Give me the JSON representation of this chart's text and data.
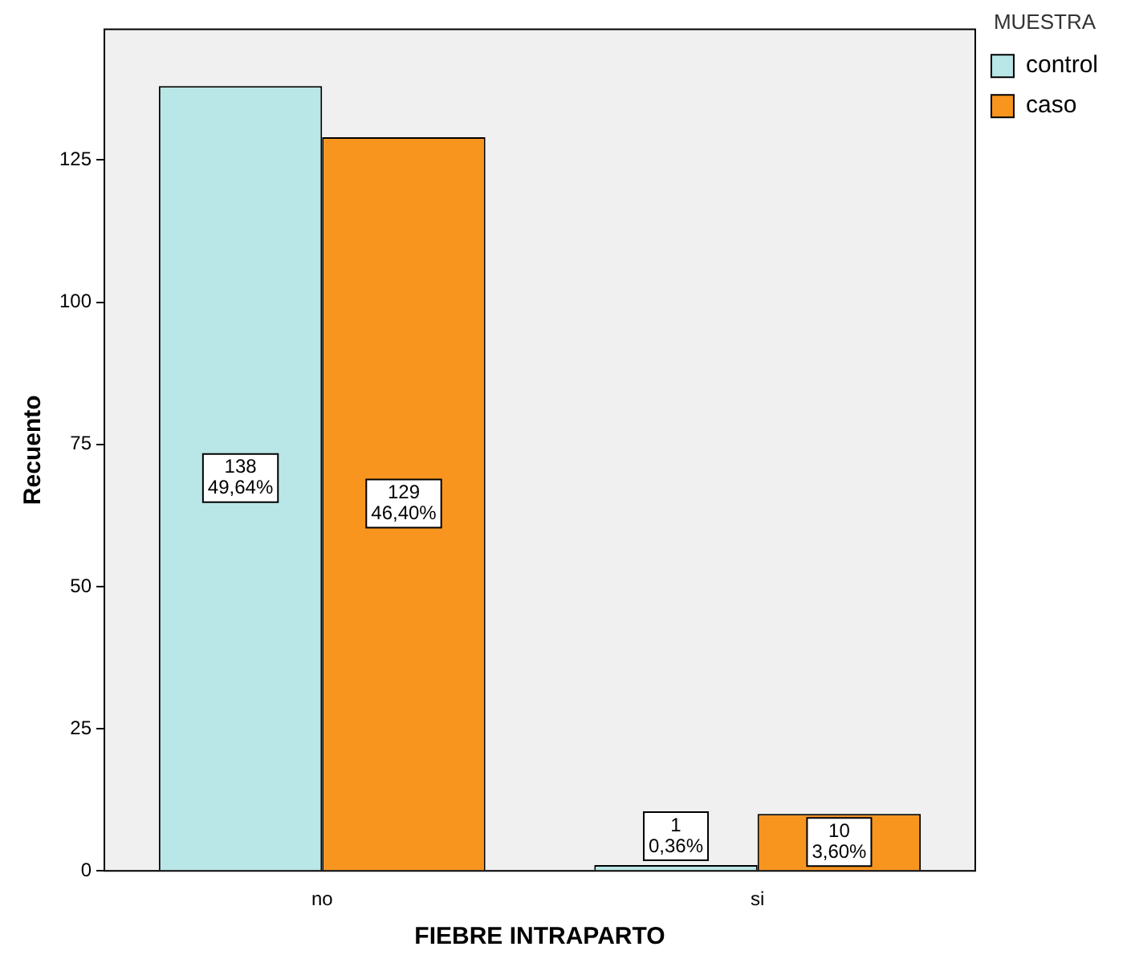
{
  "chart_data": {
    "type": "bar",
    "xlabel": "FIEBRE INTRAPARTO",
    "ylabel": "Recuento",
    "legend_title": "MUESTRA",
    "categories": [
      "no",
      "si"
    ],
    "series": [
      {
        "name": "control",
        "color": "#b9e6e6",
        "values": [
          138,
          1
        ],
        "value_labels": [
          "138\n49,64%",
          "1\n0,36%"
        ]
      },
      {
        "name": "caso",
        "color": "#f7951f",
        "values": [
          129,
          10
        ],
        "value_labels": [
          "129\n46,40%",
          "10\n3,60%"
        ]
      }
    ],
    "ylim": [
      0,
      148
    ],
    "yticks": [
      0,
      25,
      50,
      75,
      100,
      125
    ],
    "grid": false,
    "legend": "top right"
  }
}
